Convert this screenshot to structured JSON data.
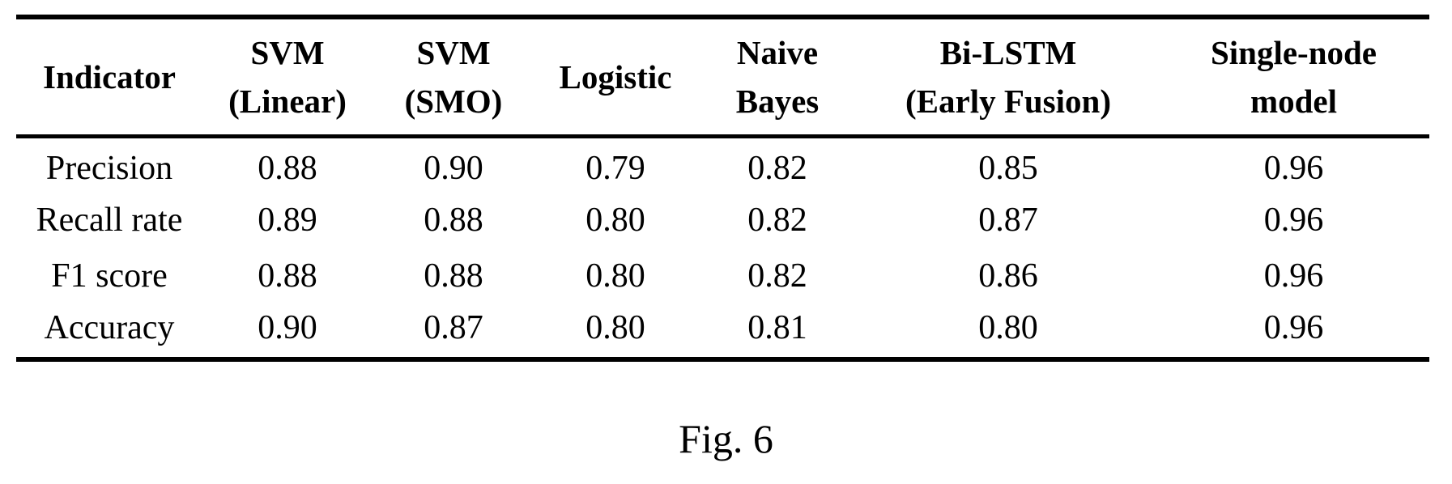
{
  "table": {
    "columns": [
      {
        "line1": "Indicator",
        "line2": ""
      },
      {
        "line1": "SVM",
        "line2": "(Linear)"
      },
      {
        "line1": "SVM",
        "line2": "(SMO)"
      },
      {
        "line1": "Logistic",
        "line2": ""
      },
      {
        "line1": "Naive",
        "line2": "Bayes"
      },
      {
        "line1": "Bi-LSTM",
        "line2": "(Early Fusion)"
      },
      {
        "line1": "Single-node",
        "line2": "model"
      }
    ],
    "rows": [
      {
        "indicator": "Precision",
        "values": [
          "0.88",
          "0.90",
          "0.79",
          "0.82",
          "0.85",
          "0.96"
        ]
      },
      {
        "indicator": "Recall rate",
        "values": [
          "0.89",
          "0.88",
          "0.80",
          "0.82",
          "0.87",
          "0.96"
        ]
      },
      {
        "indicator": "F1 score",
        "values": [
          "0.88",
          "0.88",
          "0.80",
          "0.82",
          "0.86",
          "0.96"
        ]
      },
      {
        "indicator": "Accuracy",
        "values": [
          "0.90",
          "0.87",
          "0.80",
          "0.81",
          "0.80",
          "0.96"
        ]
      }
    ]
  },
  "caption": "Fig. 6"
}
